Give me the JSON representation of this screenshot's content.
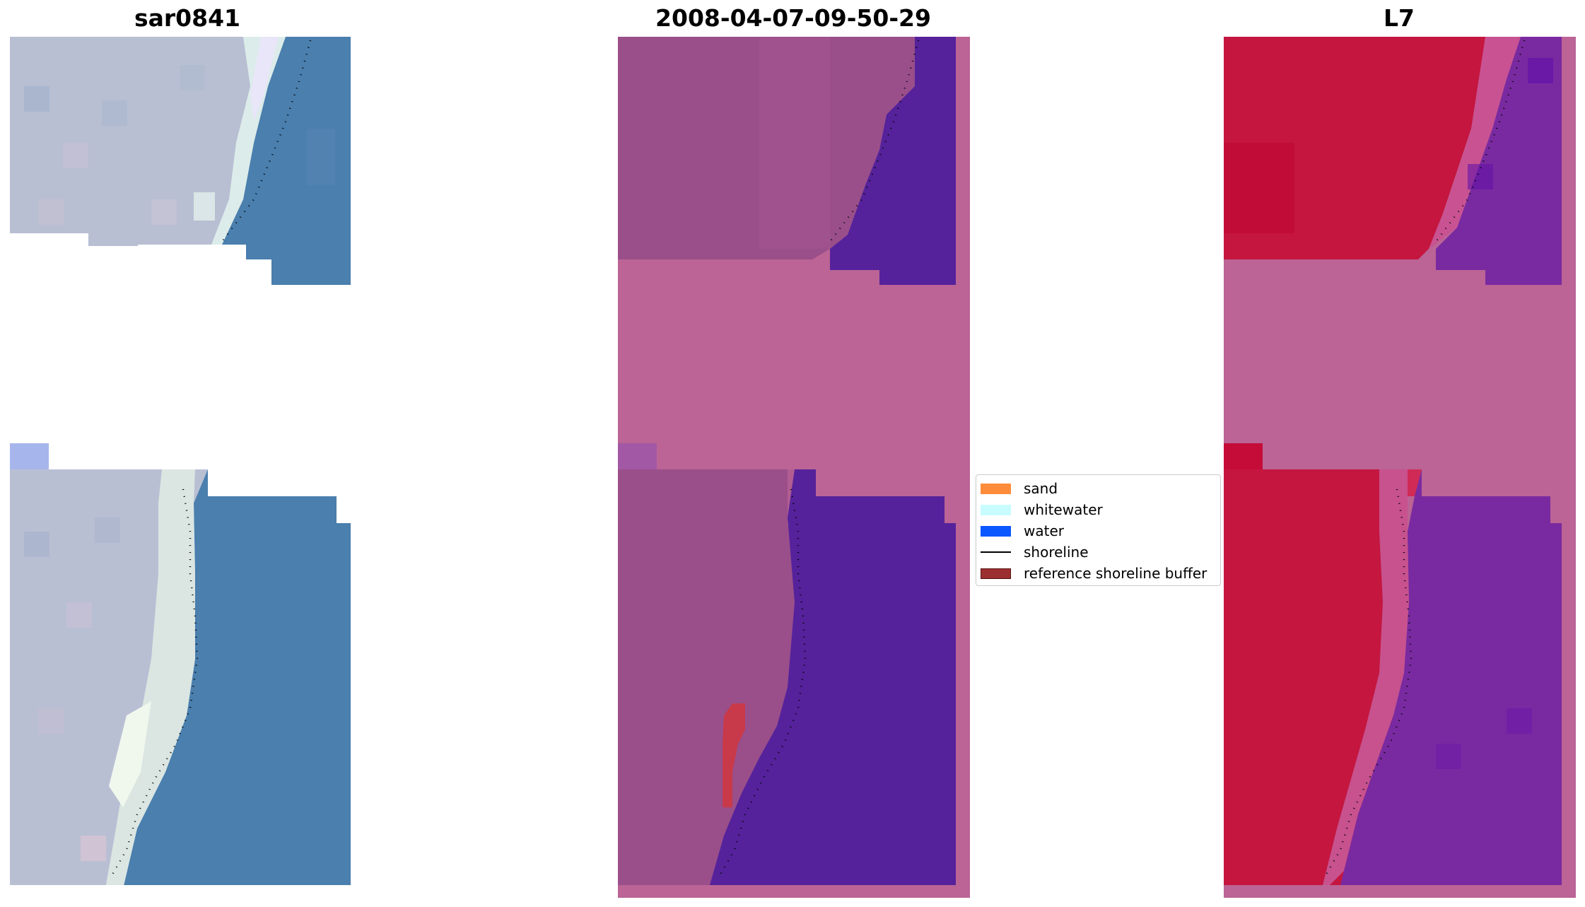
{
  "panels": [
    {
      "title": "sar0841"
    },
    {
      "title": "2008-04-07-09-50-29"
    },
    {
      "title": "L7"
    }
  ],
  "legend": {
    "items": [
      {
        "label": "sand",
        "color": "#ff8c3a",
        "kind": "patch"
      },
      {
        "label": "whitewater",
        "color": "#c8fcff",
        "kind": "patch"
      },
      {
        "label": "water",
        "color": "#0a58ff",
        "kind": "patch"
      },
      {
        "label": "shoreline",
        "color": "#000000",
        "kind": "line"
      },
      {
        "label": "reference shoreline buffer",
        "color": "#9c3030",
        "kind": "patch"
      }
    ]
  },
  "colors": {
    "rgb_sand": "#b9bed3",
    "rgb_water": "#4a7fae",
    "class_land": "#9a4f8a",
    "class_water": "#55229b",
    "class_nodata": "#bb6495",
    "ndwi_land": "#c4163f",
    "ndwi_water": "#7a2aa0",
    "buffer_red": "#c83a4a"
  }
}
